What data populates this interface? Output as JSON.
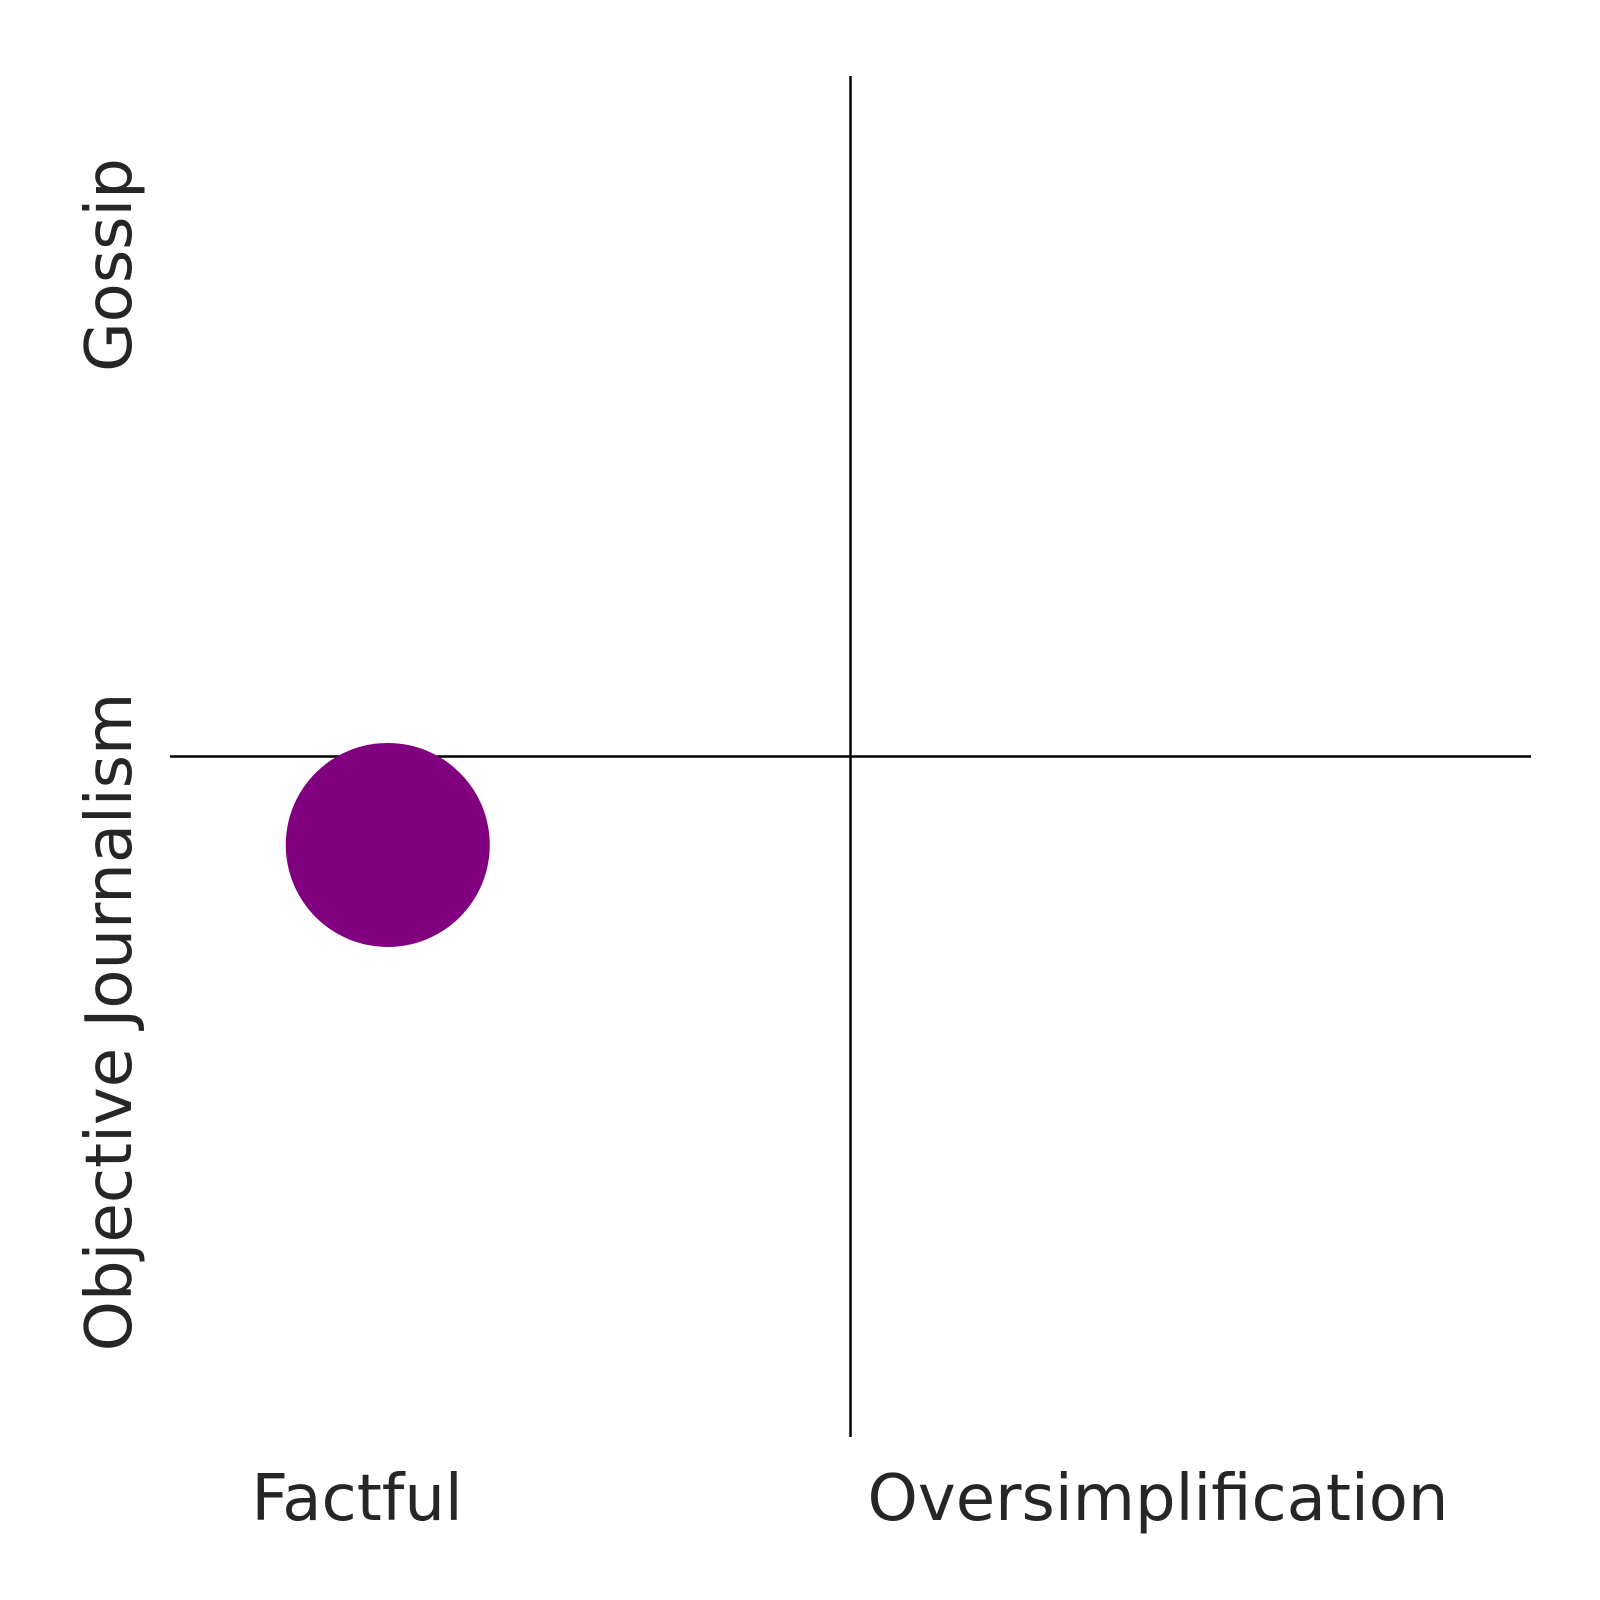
{
  "chart_data": {
    "type": "scatter",
    "title": "",
    "x_tick_labels": [
      "Factful",
      "Oversimplification"
    ],
    "y_tick_labels": [
      "Objective Journalism",
      "Gossip"
    ],
    "xlim": [
      -1,
      1
    ],
    "ylim": [
      -1,
      1
    ],
    "reference_lines": {
      "x": 0,
      "y": 0
    },
    "grid": false,
    "legend": "none",
    "points": [
      {
        "x": -0.68,
        "y": -0.13,
        "color": "#800080"
      }
    ],
    "colors": {
      "point": "#800080",
      "axis_lines": "#000000",
      "text": "#262626"
    }
  }
}
